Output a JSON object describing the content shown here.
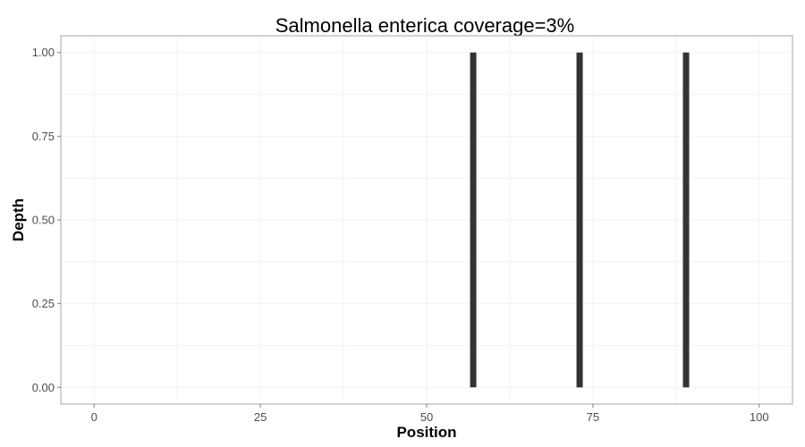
{
  "chart_data": {
    "type": "bar",
    "title": "Salmonella enterica coverage=3%",
    "xlabel": "Position",
    "ylabel": "Depth",
    "x_ticks": [
      0,
      25,
      50,
      75,
      100
    ],
    "y_ticks": [
      "0.00",
      "0.25",
      "0.50",
      "0.75",
      "1.00"
    ],
    "xlim": [
      -5,
      105
    ],
    "ylim": [
      -0.05,
      1.05
    ],
    "grid": true,
    "bar_color": "#333333",
    "bars": [
      {
        "x": 57,
        "y": 1.0
      },
      {
        "x": 73,
        "y": 1.0
      },
      {
        "x": 89,
        "y": 1.0
      }
    ]
  }
}
